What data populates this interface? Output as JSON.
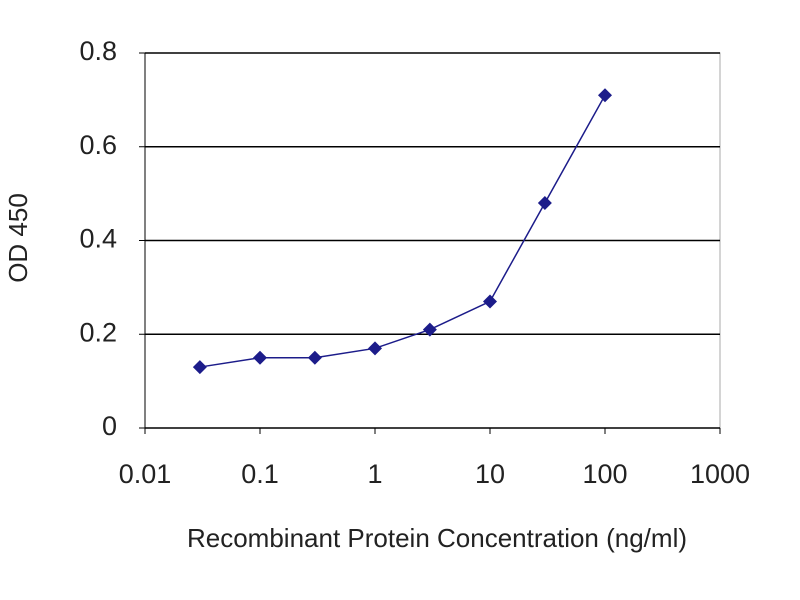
{
  "chart_data": {
    "type": "line",
    "x_label": "Recombinant Protein Concentration (ng/ml)",
    "y_label": "OD 450",
    "x": [
      0.03,
      0.1,
      0.3,
      1,
      3,
      10,
      30,
      100
    ],
    "series": [
      {
        "color": "#1c1c8a",
        "values": [
          0.13,
          0.15,
          0.15,
          0.17,
          0.21,
          0.27,
          0.48,
          0.71
        ]
      }
    ],
    "xlim": [
      0.01,
      1000
    ],
    "xticks": [
      0.01,
      0.1,
      1,
      10,
      100,
      1000
    ],
    "xscale": "log",
    "ylim": [
      0,
      0.8
    ],
    "yticks": [
      0,
      0.2,
      0.4,
      0.6,
      0.8
    ],
    "grid": true
  }
}
